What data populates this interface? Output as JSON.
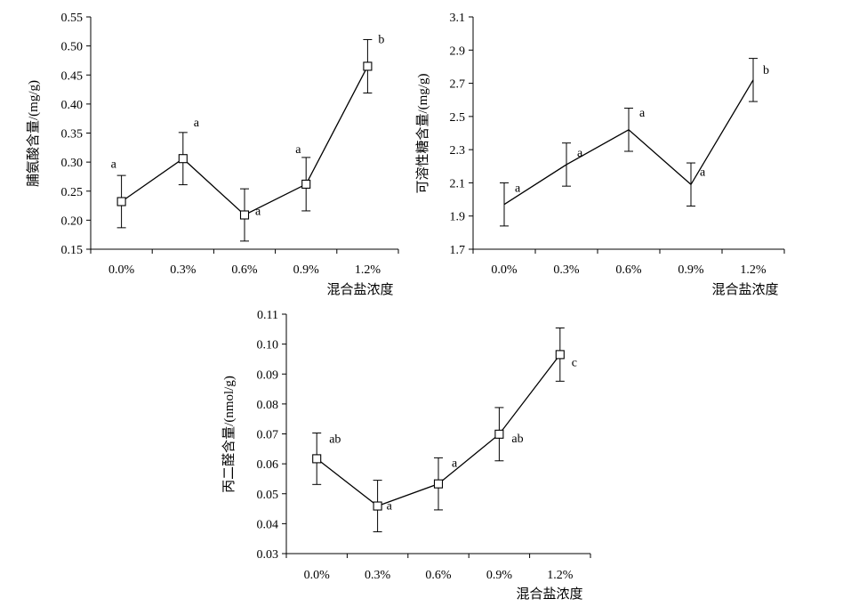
{
  "chart_data": [
    {
      "type": "line",
      "categories": [
        "0.0%",
        "0.3%",
        "0.6%",
        "0.9%",
        "1.2%"
      ],
      "values": [
        0.232,
        0.306,
        0.209,
        0.262,
        0.465
      ],
      "error": [
        0.045,
        0.045,
        0.045,
        0.046,
        0.046
      ],
      "significance": [
        "a",
        "a",
        "a",
        "a",
        "b"
      ],
      "yticks": [
        "0.15",
        "0.20",
        "0.25",
        "0.30",
        "0.35",
        "0.40",
        "0.45",
        "0.50",
        "0.55"
      ],
      "ylim": [
        0.15,
        0.55
      ],
      "ylabel": "脯氨酸含量/(mg/g)",
      "xlabel": "混合盐浓度",
      "marker": "open-square",
      "line_color": "#000000"
    },
    {
      "type": "line",
      "categories": [
        "0.0%",
        "0.3%",
        "0.6%",
        "0.9%",
        "1.2%"
      ],
      "values": [
        1.97,
        2.21,
        2.42,
        2.09,
        2.72
      ],
      "error": [
        0.13,
        0.13,
        0.13,
        0.13,
        0.13
      ],
      "significance": [
        "a",
        "a",
        "a",
        "a",
        "b"
      ],
      "yticks": [
        "1.7",
        "1.9",
        "2.1",
        "2.3",
        "2.5",
        "2.7",
        "2.9",
        "3.1"
      ],
      "ylim": [
        1.7,
        3.1
      ],
      "ylabel": "可溶性糖含量/(mg/g)",
      "xlabel": "混合盐浓度",
      "marker": "none",
      "line_color": "#000000"
    },
    {
      "type": "line",
      "categories": [
        "0.0%",
        "0.3%",
        "0.6%",
        "0.9%",
        "1.2%"
      ],
      "values": [
        0.0617,
        0.0459,
        0.0533,
        0.0699,
        0.0965
      ],
      "error": [
        0.0086,
        0.0086,
        0.0087,
        0.0089,
        0.0089
      ],
      "significance": [
        "ab",
        "a",
        "a",
        "ab",
        "c"
      ],
      "yticks": [
        "0.03",
        "0.04",
        "0.05",
        "0.06",
        "0.07",
        "0.08",
        "0.09",
        "0.10",
        "0.11"
      ],
      "ylim": [
        0.03,
        0.11
      ],
      "ylabel": "丙二醛含量/(nmol/g)",
      "xlabel": "混合盐浓度",
      "marker": "open-square",
      "line_color": "#000000"
    }
  ]
}
